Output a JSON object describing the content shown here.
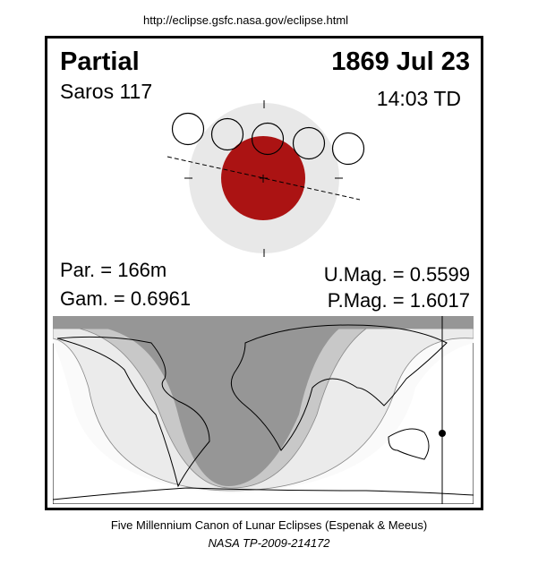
{
  "source_url": "http://eclipse.gsfc.nasa.gov/eclipse.html",
  "eclipse": {
    "type": "Partial",
    "date": "1869 Jul 23",
    "saros": "Saros 117",
    "time": "14:03 TD",
    "par": "Par. = 166m",
    "gam": "Gam. = 0.6961",
    "umag": "U.Mag. = 0.5599",
    "pmag": "P.Mag. = 1.6017"
  },
  "colors": {
    "umbra": "#ab1313",
    "penumbra": "#e8e8e8",
    "map_dark": "#969696",
    "map_mid": "#c8c8c8",
    "map_light": "#ebebeb",
    "map_lightest": "#fafafa"
  },
  "footer": {
    "line1": "Five Millennium Canon of Lunar Eclipses (Espenak & Meeus)",
    "line2": "NASA TP-2009-214172"
  }
}
